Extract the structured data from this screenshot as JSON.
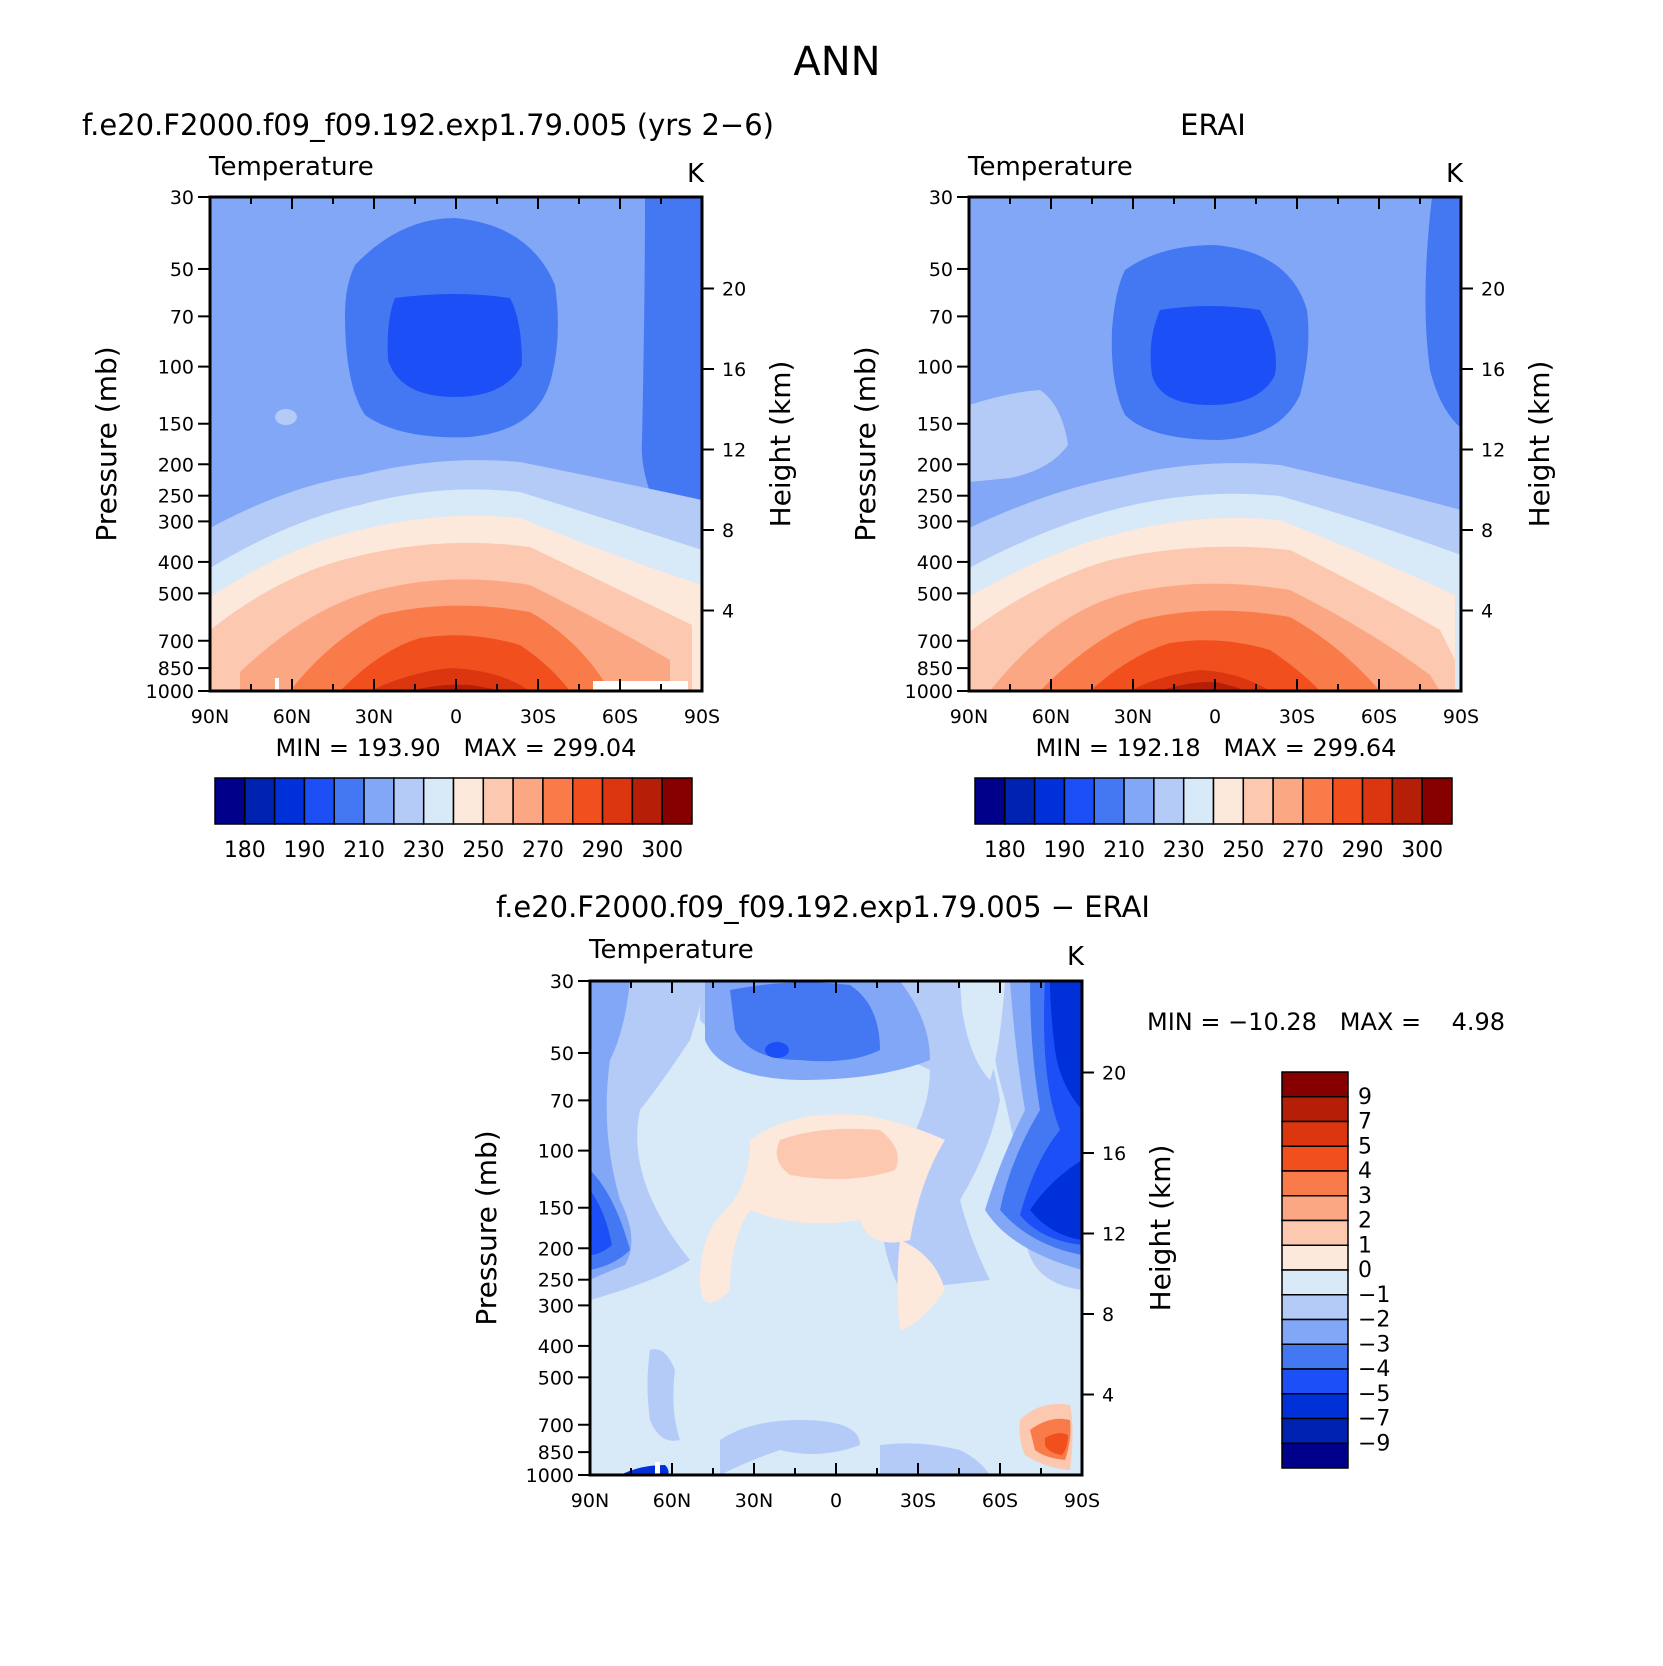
{
  "figure_title": "ANN",
  "chart_data": [
    {
      "type": "heatmap",
      "title": "f.e20.F2000.f09_f09.192.exp1.79.005 (yrs 2−6)",
      "variable": "Temperature",
      "units": "K",
      "xlabel": "",
      "ylabel": "Pressure (mb)",
      "ylabel_right": "Height (km)",
      "x_ticks": [
        "90N",
        "60N",
        "30N",
        "0",
        "30S",
        "60S",
        "90S"
      ],
      "y_ticks": [
        30,
        50,
        70,
        100,
        150,
        200,
        250,
        300,
        400,
        500,
        700,
        850,
        1000
      ],
      "y_scale": "log",
      "ylim": [
        30,
        1000
      ],
      "height_ticks_km": [
        20,
        16,
        12,
        8,
        4
      ],
      "min": "193.90",
      "max": "299.04",
      "stats_text": "MIN = 193.90   MAX = 299.04",
      "colorbar_labels": [
        "180",
        "190",
        "210",
        "230",
        "250",
        "270",
        "290",
        "300"
      ],
      "colorbar_colors": [
        "#00008a",
        "#0022b0",
        "#0030d8",
        "#1c4ff5",
        "#4478f2",
        "#82a7f7",
        "#b4cbf8",
        "#d8e9f7",
        "#fde8dc",
        "#fcc8b0",
        "#fba784",
        "#f97b49",
        "#f24f1e",
        "#dc3610",
        "#b51f08",
        "#870000"
      ],
      "colorbar_orientation": "horizontal"
    },
    {
      "type": "heatmap",
      "title": "ERAI",
      "variable": "Temperature",
      "units": "K",
      "xlabel": "",
      "ylabel": "Pressure (mb)",
      "ylabel_right": "Height (km)",
      "x_ticks": [
        "90N",
        "60N",
        "30N",
        "0",
        "30S",
        "60S",
        "90S"
      ],
      "y_ticks": [
        30,
        50,
        70,
        100,
        150,
        200,
        250,
        300,
        400,
        500,
        700,
        850,
        1000
      ],
      "y_scale": "log",
      "ylim": [
        30,
        1000
      ],
      "height_ticks_km": [
        20,
        16,
        12,
        8,
        4
      ],
      "min": "192.18",
      "max": "299.64",
      "stats_text": "MIN = 192.18   MAX = 299.64",
      "colorbar_labels": [
        "180",
        "190",
        "210",
        "230",
        "250",
        "270",
        "290",
        "300"
      ],
      "colorbar_colors": [
        "#00008a",
        "#0022b0",
        "#0030d8",
        "#1c4ff5",
        "#4478f2",
        "#82a7f7",
        "#b4cbf8",
        "#d8e9f7",
        "#fde8dc",
        "#fcc8b0",
        "#fba784",
        "#f97b49",
        "#f24f1e",
        "#dc3610",
        "#b51f08",
        "#870000"
      ],
      "colorbar_orientation": "horizontal"
    },
    {
      "type": "heatmap",
      "title": "f.e20.F2000.f09_f09.192.exp1.79.005 − ERAI",
      "variable": "Temperature",
      "units": "K",
      "xlabel": "",
      "ylabel": "Pressure (mb)",
      "ylabel_right": "Height (km)",
      "x_ticks": [
        "90N",
        "60N",
        "30N",
        "0",
        "30S",
        "60S",
        "90S"
      ],
      "y_ticks": [
        30,
        50,
        70,
        100,
        150,
        200,
        250,
        300,
        400,
        500,
        700,
        850,
        1000
      ],
      "y_scale": "log",
      "ylim": [
        30,
        1000
      ],
      "height_ticks_km": [
        20,
        16,
        12,
        8,
        4
      ],
      "min": "−10.28",
      "max": "4.98",
      "stats_text": "MIN = −10.28   MAX =    4.98",
      "colorbar_labels": [
        "9",
        "7",
        "5",
        "4",
        "3",
        "2",
        "1",
        "0",
        "−1",
        "−2",
        "−3",
        "−4",
        "−5",
        "−7",
        "−9"
      ],
      "colorbar_colors": [
        "#870000",
        "#b51f08",
        "#dc3610",
        "#f24f1e",
        "#f97b49",
        "#fba784",
        "#fcc8b0",
        "#fde8dc",
        "#d8e9f7",
        "#b4cbf8",
        "#82a7f7",
        "#4478f2",
        "#1c4ff5",
        "#0030d8",
        "#0022b0",
        "#00008a"
      ],
      "colorbar_orientation": "vertical"
    }
  ]
}
